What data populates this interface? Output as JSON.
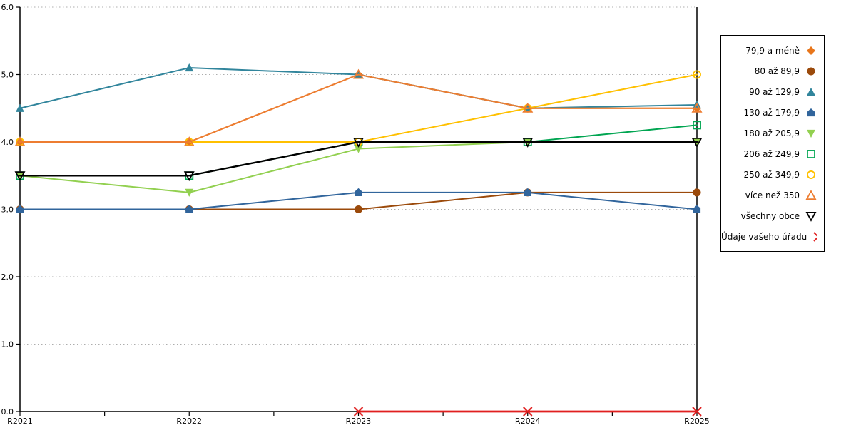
{
  "chart_data": {
    "type": "line",
    "categories": [
      "R2021",
      "R2022",
      "R2023",
      "R2024",
      "R2025"
    ],
    "series": [
      {
        "name": "79,9 a méně",
        "marker": "diamond",
        "color": "#E8761B",
        "line_width": 2,
        "values": [
          4.0,
          4.0,
          5.0,
          4.5,
          4.5
        ]
      },
      {
        "name": "80 až 89,9",
        "marker": "circle",
        "color": "#9B4A0B",
        "line_width": 2,
        "values": [
          3.0,
          3.0,
          3.0,
          3.25,
          3.25
        ]
      },
      {
        "name": "90 až 129,9",
        "marker": "triangle-up",
        "color": "#31859C",
        "line_width": 2,
        "values": [
          4.5,
          5.1,
          5.0,
          4.5,
          4.55
        ]
      },
      {
        "name": "130 až 179,9",
        "marker": "pentagon",
        "color": "#31659C",
        "line_width": 2,
        "values": [
          3.0,
          3.0,
          3.25,
          3.25,
          3.0
        ]
      },
      {
        "name": "180 až 205,9",
        "marker": "triangle-down",
        "color": "#92D050",
        "line_width": 2,
        "values": [
          3.5,
          3.25,
          3.9,
          4.0,
          4.0
        ]
      },
      {
        "name": "206 až 249,9",
        "marker": "square-open",
        "color": "#00A551",
        "line_width": 2,
        "values": [
          3.5,
          3.5,
          4.0,
          4.0,
          4.25
        ]
      },
      {
        "name": "250 až 349,9",
        "marker": "circle-open",
        "color": "#FFC000",
        "line_width": 2,
        "values": [
          4.0,
          4.0,
          4.0,
          4.5,
          5.0
        ]
      },
      {
        "name": "více než 350",
        "marker": "triangle-up-open",
        "color": "#ED7D31",
        "line_width": 2,
        "values": [
          4.0,
          4.0,
          5.0,
          4.5,
          4.5
        ]
      },
      {
        "name": "všechny obce",
        "marker": "triangle-down-open",
        "color": "#000000",
        "line_width": 2.4,
        "values": [
          3.5,
          3.5,
          4.0,
          4.0,
          4.0
        ]
      },
      {
        "name": "Údaje vašeho úřadu",
        "marker": "x",
        "color": "#E01F1F",
        "line_width": 2.8,
        "values": [
          null,
          null,
          0.0,
          0.0,
          0.0
        ]
      }
    ],
    "ylim": [
      0,
      6
    ],
    "yticks": [
      "0.0",
      "1.0",
      "2.0",
      "3.0",
      "4.0",
      "5.0",
      "6.0"
    ],
    "grid": "horizontal-dotted",
    "legend_position": "right",
    "title": "",
    "xlabel": "",
    "ylabel": ""
  },
  "colors": {
    "background": "#FFFFFF",
    "grid": "#ADADAD",
    "axis": "#000000"
  }
}
